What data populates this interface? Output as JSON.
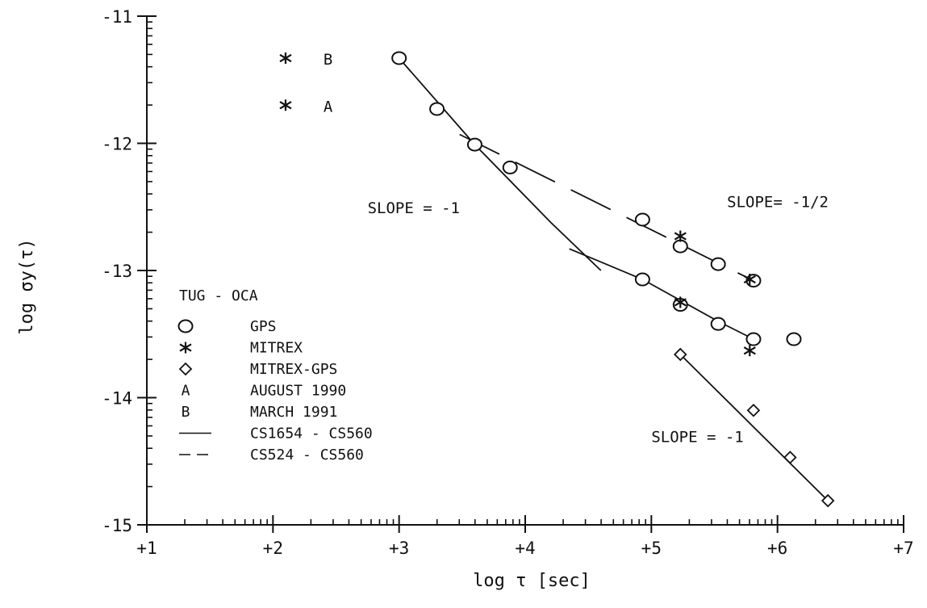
{
  "chart_data": {
    "type": "scatter",
    "xlabel": "log τ [sec]",
    "ylabel": "log σy(τ)",
    "xlim": [
      1,
      7
    ],
    "ylim": [
      -15,
      -11
    ],
    "x_tick_labels": [
      "+1",
      "+2",
      "+3",
      "+4",
      "+5",
      "+6",
      "+7"
    ],
    "y_tick_labels": [
      "-11",
      "-12",
      "-13",
      "-14",
      "-15"
    ],
    "x_minor_scale": "log-decade",
    "grid": false,
    "series": [
      {
        "name": "GPS",
        "marker": "circle",
        "points": [
          [
            3.0,
            -11.33
          ],
          [
            3.3,
            -11.73
          ],
          [
            3.6,
            -12.01
          ],
          [
            3.88,
            -12.19
          ],
          [
            4.93,
            -12.6
          ],
          [
            5.23,
            -12.81
          ],
          [
            5.53,
            -12.95
          ],
          [
            5.81,
            -13.08
          ],
          [
            4.93,
            -13.07
          ],
          [
            5.23,
            -13.27
          ],
          [
            5.53,
            -13.42
          ],
          [
            5.81,
            -13.54
          ],
          [
            6.13,
            -13.54
          ]
        ]
      },
      {
        "name": "MITREX",
        "marker": "asterisk",
        "points": [
          [
            2.1,
            -11.33
          ],
          [
            2.1,
            -11.7
          ],
          [
            5.23,
            -12.73
          ],
          [
            5.23,
            -13.25
          ],
          [
            5.78,
            -13.07
          ],
          [
            5.78,
            -13.63
          ]
        ]
      },
      {
        "name": "MITREX-GPS",
        "marker": "diamond",
        "points": [
          [
            5.23,
            -13.66
          ],
          [
            5.81,
            -14.1
          ],
          [
            6.1,
            -14.47
          ],
          [
            6.4,
            -14.81
          ]
        ]
      }
    ],
    "fit_lines": [
      {
        "name": "CS1654 - CS560",
        "style": "solid",
        "points": [
          [
            3.0,
            -11.33
          ],
          [
            3.6,
            -12.01
          ],
          [
            4.2,
            -12.62
          ],
          [
            4.6,
            -13.0
          ]
        ]
      },
      {
        "name": "CS1654 - CS560",
        "style": "solid",
        "points": [
          [
            4.35,
            -12.83
          ],
          [
            4.93,
            -13.07
          ],
          [
            5.53,
            -13.4
          ],
          [
            5.81,
            -13.54
          ]
        ]
      },
      {
        "name": "CS524 - CS560",
        "style": "dashed",
        "points": [
          [
            3.48,
            -11.93
          ],
          [
            5.81,
            -13.08
          ]
        ]
      },
      {
        "name": "CS1654 - CS560",
        "style": "solid",
        "points": [
          [
            5.23,
            -13.66
          ],
          [
            6.4,
            -14.81
          ]
        ]
      }
    ],
    "point_labels": [
      {
        "text": "B",
        "x": 2.4,
        "y": -11.33
      },
      {
        "text": "A",
        "x": 2.4,
        "y": -11.7
      }
    ],
    "annotations": [
      {
        "text": "SLOPE = -1",
        "x": 2.75,
        "y": -12.55
      },
      {
        "text": "SLOPE= -1/2",
        "x": 5.6,
        "y": -12.5
      },
      {
        "text": "SLOPE = -1",
        "x": 5.0,
        "y": -14.35
      }
    ],
    "legend": {
      "placement": "lower-left",
      "title": "TUG - OCA",
      "entries": [
        {
          "symbol": "circle",
          "label": "GPS"
        },
        {
          "symbol": "asterisk",
          "label": "MITREX"
        },
        {
          "symbol": "diamond",
          "label": "MITREX-GPS"
        },
        {
          "symbol": "letter-A",
          "key": "A",
          "label": "AUGUST 1990"
        },
        {
          "symbol": "letter-B",
          "key": "B",
          "label": "MARCH 1991"
        },
        {
          "symbol": "solid-line",
          "label": "CS1654 - CS560"
        },
        {
          "symbol": "dashed-line",
          "label": "CS524 - CS560"
        }
      ]
    }
  }
}
